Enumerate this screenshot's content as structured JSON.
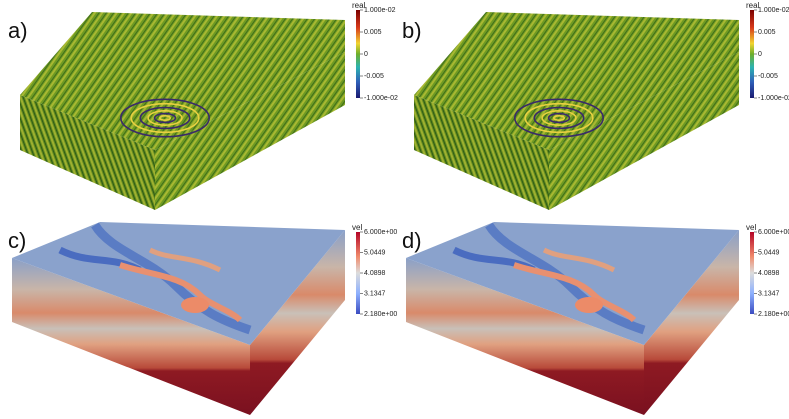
{
  "panels": [
    {
      "label": "a)",
      "colorbar": {
        "title": "real",
        "ticks": [
          "1.000e-02",
          "0.005",
          "0",
          "-0.005",
          "-1.000e-02"
        ]
      }
    },
    {
      "label": "b)",
      "colorbar": {
        "title": "real",
        "ticks": [
          "1.000e-02",
          "0.005",
          "0",
          "-0.005",
          "-1.000e-02"
        ]
      }
    },
    {
      "label": "c)",
      "colorbar": {
        "title": "vel",
        "ticks": [
          "6.000e+00",
          "5.0449",
          "4.0898",
          "3.1347",
          "2.180e+00"
        ]
      }
    },
    {
      "label": "d)",
      "colorbar": {
        "title": "vel",
        "ticks": [
          "6.000e+00",
          "5.0449",
          "4.0898",
          "3.1347",
          "2.180e+00"
        ]
      }
    }
  ]
}
